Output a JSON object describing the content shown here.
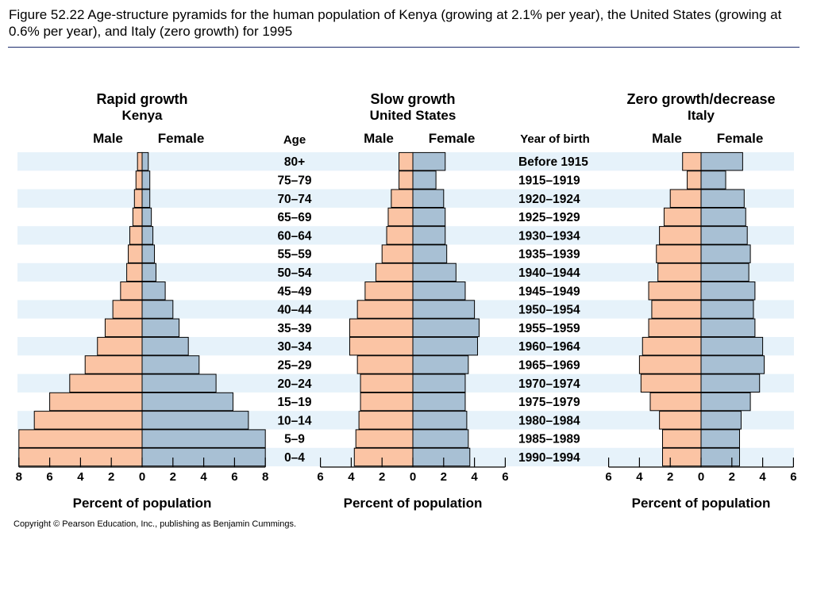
{
  "caption": "Figure 52.22  Age-structure pyramids for the human population of Kenya (growing at 2.1% per year), the United States (growing at 0.6% per year), and Italy (zero growth) for 1995",
  "copyright": "Copyright © Pearson Education, Inc., publishing as Benjamin Cummings.",
  "colors": {
    "male": "#fbc4a4",
    "female": "#a8c0d4",
    "row_band": "#e6f2fa",
    "rule": "#1a2a6c"
  },
  "chart_data": {
    "type": "bar",
    "age_label": "Age",
    "year_label": "Year of birth",
    "age_groups": [
      "80+",
      "75–79",
      "70–74",
      "65–69",
      "60–64",
      "55–59",
      "50–54",
      "45–49",
      "40–44",
      "35–39",
      "30–34",
      "25–29",
      "20–24",
      "15–19",
      "10–14",
      "5–9",
      "0–4"
    ],
    "birth_years": [
      "Before 1915",
      "1915–1919",
      "1920–1924",
      "1925–1929",
      "1930–1934",
      "1935–1939",
      "1940–1944",
      "1945–1949",
      "1950–1954",
      "1955–1959",
      "1960–1964",
      "1965–1969",
      "1970–1974",
      "1975–1979",
      "1980–1984",
      "1985–1989",
      "1990–1994"
    ],
    "panels": [
      {
        "title": "Rapid growth",
        "subtitle": "Kenya",
        "male_label": "Male",
        "female_label": "Female",
        "xlabel": "Percent of population",
        "xlim": [
          -8,
          8
        ],
        "ticks": [
          "8",
          "6",
          "4",
          "2",
          "0",
          "2",
          "4",
          "6",
          "8"
        ],
        "male": [
          0.3,
          0.4,
          0.5,
          0.6,
          0.8,
          0.9,
          1.0,
          1.4,
          1.9,
          2.4,
          2.9,
          3.7,
          4.7,
          6.0,
          7.0,
          8.0,
          8.0
        ],
        "female": [
          0.4,
          0.5,
          0.5,
          0.6,
          0.7,
          0.8,
          0.9,
          1.5,
          2.0,
          2.4,
          3.0,
          3.7,
          4.8,
          5.9,
          6.9,
          8.0,
          8.0
        ]
      },
      {
        "title": "Slow growth",
        "subtitle": "United States",
        "male_label": "Male",
        "female_label": "Female",
        "xlabel": "Percent of population",
        "xlim": [
          -6,
          6
        ],
        "ticks": [
          "6",
          "4",
          "2",
          "0",
          "2",
          "4",
          "6"
        ],
        "male": [
          0.9,
          0.9,
          1.4,
          1.6,
          1.7,
          2.0,
          2.4,
          3.1,
          3.6,
          4.1,
          4.1,
          3.6,
          3.4,
          3.4,
          3.5,
          3.7,
          3.8
        ],
        "female": [
          2.1,
          1.5,
          2.0,
          2.1,
          2.1,
          2.2,
          2.8,
          3.4,
          4.0,
          4.3,
          4.2,
          3.6,
          3.4,
          3.4,
          3.5,
          3.6,
          3.7
        ]
      },
      {
        "title": "Zero growth/decrease",
        "subtitle": "Italy",
        "male_label": "Male",
        "female_label": "Female",
        "xlabel": "Percent of population",
        "xlim": [
          -6,
          6
        ],
        "ticks": [
          "6",
          "4",
          "2",
          "0",
          "2",
          "4",
          "6"
        ],
        "male": [
          1.2,
          0.9,
          2.0,
          2.4,
          2.7,
          2.9,
          2.8,
          3.4,
          3.2,
          3.4,
          3.8,
          4.0,
          3.9,
          3.3,
          2.7,
          2.5,
          2.5
        ],
        "female": [
          2.7,
          1.6,
          2.8,
          2.9,
          3.0,
          3.2,
          3.1,
          3.5,
          3.4,
          3.5,
          4.0,
          4.1,
          3.8,
          3.2,
          2.6,
          2.5,
          2.5
        ]
      }
    ]
  }
}
